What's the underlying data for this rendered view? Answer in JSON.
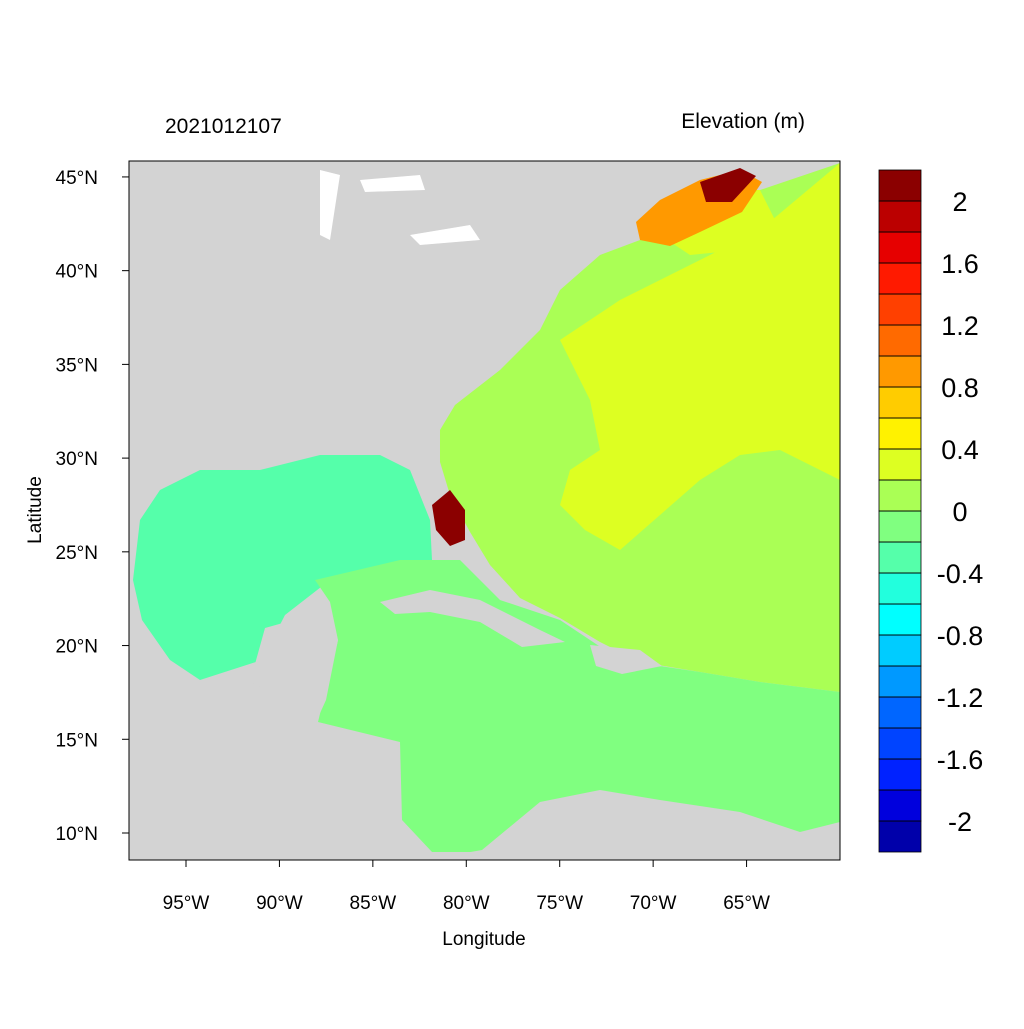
{
  "map": {
    "left_title": "2021012107",
    "right_title": "Elevation (m)",
    "x_label": "Longitude",
    "y_label": "Latitude",
    "xlim": [
      -98.05,
      -60
    ],
    "ylim": [
      8.56,
      45.85
    ],
    "xticks": [
      {
        "value": -95,
        "label": "95°W"
      },
      {
        "value": -90,
        "label": "90°W"
      },
      {
        "value": -85,
        "label": "85°W"
      },
      {
        "value": -80,
        "label": "80°W"
      },
      {
        "value": -75,
        "label": "75°W"
      },
      {
        "value": -70,
        "label": "70°W"
      },
      {
        "value": -65,
        "label": "65°W"
      }
    ],
    "yticks": [
      {
        "value": 10,
        "label": "10°N"
      },
      {
        "value": 15,
        "label": "15°N"
      },
      {
        "value": 20,
        "label": "20°N"
      },
      {
        "value": 25,
        "label": "25°N"
      },
      {
        "value": 30,
        "label": "30°N"
      },
      {
        "value": 35,
        "label": "35°N"
      },
      {
        "value": 40,
        "label": "40°N"
      },
      {
        "value": 45,
        "label": "45°N"
      }
    ],
    "colorbar": {
      "levels": [
        -2,
        -1.8,
        -1.6,
        -1.4,
        -1.2,
        -1,
        -0.8,
        -0.6,
        -0.4,
        -0.2,
        0,
        0.2,
        0.4,
        0.6,
        0.8,
        1,
        1.2,
        1.4,
        1.6,
        1.8,
        2
      ],
      "colors": [
        "#0000aa",
        "#0000dd",
        "#0022ff",
        "#0044ff",
        "#0066ff",
        "#0099ff",
        "#00ccff",
        "#00ffff",
        "#22ffdd",
        "#55ffaa",
        "#80ff80",
        "#aaff55",
        "#ddff22",
        "#fff200",
        "#ffcc00",
        "#ff9900",
        "#ff6a00",
        "#ff4000",
        "#ff1a00",
        "#e60000",
        "#bb0000",
        "#8b0000"
      ],
      "ticks": [
        2,
        1.6,
        1.2,
        0.8,
        0.4,
        0,
        -0.4,
        -0.8,
        -1.2,
        -1.6,
        -2
      ]
    }
  }
}
